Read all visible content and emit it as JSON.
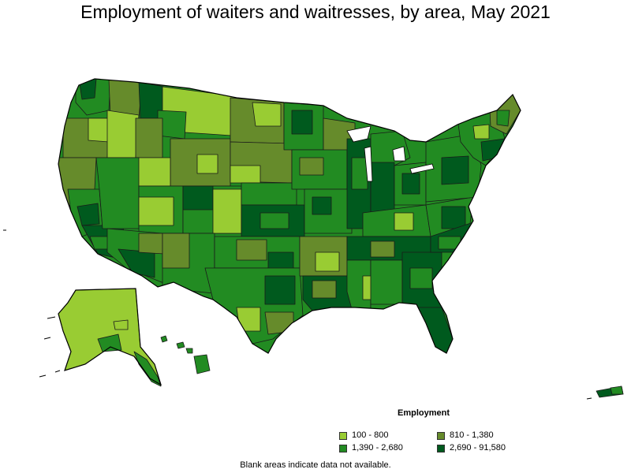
{
  "title": "Employment of waiters and waitresses, by area, May 2021",
  "legend": {
    "title": "Employment",
    "items": [
      {
        "label": "100 - 800",
        "color": "#99cc33"
      },
      {
        "label": "810 - 1,380",
        "color": "#668b2b"
      },
      {
        "label": "1,390 - 2,680",
        "color": "#228b22"
      },
      {
        "label": "2,690 - 91,580",
        "color": "#005a1e"
      }
    ]
  },
  "footnote": "Blank areas indicate data not available."
}
